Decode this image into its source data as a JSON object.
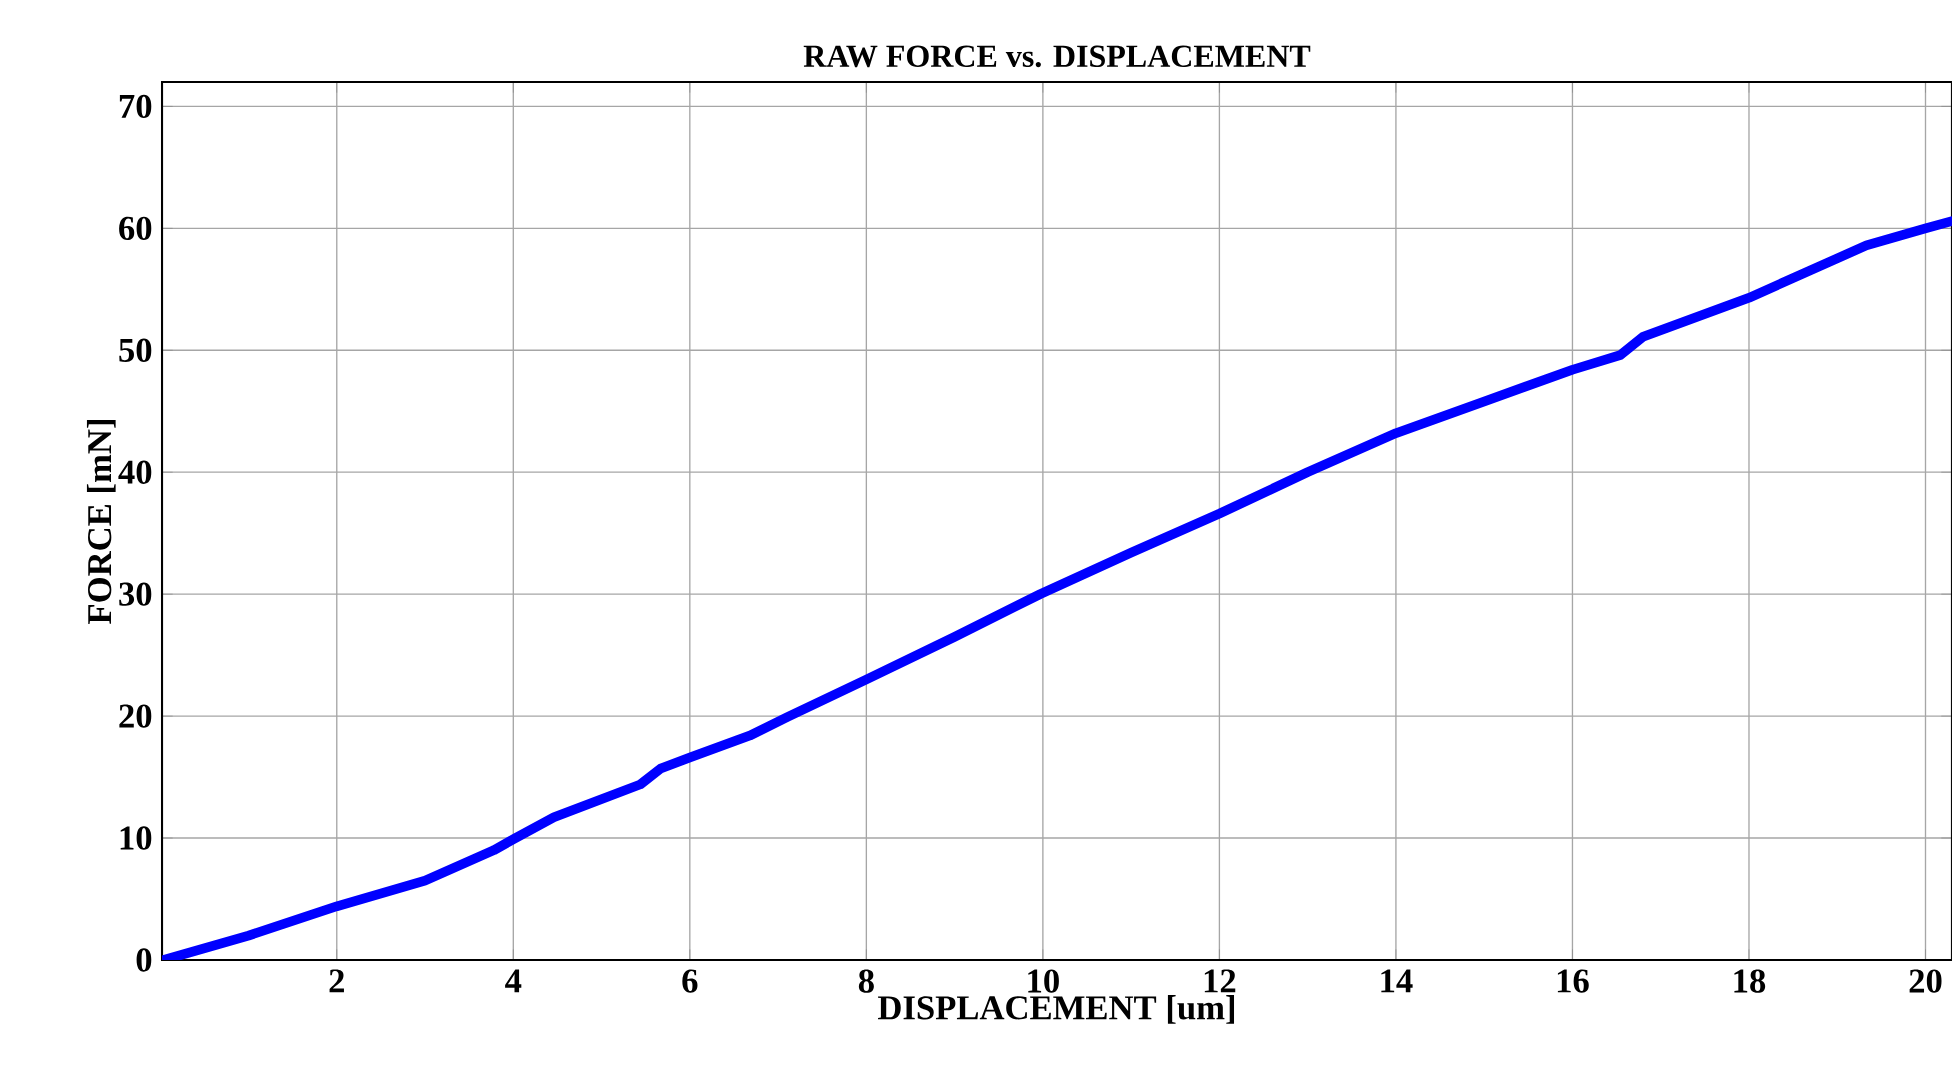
{
  "chart_data": {
    "type": "line",
    "title": "RAW FORCE vs. DISPLACEMENT",
    "xlabel": "DISPLACEMENT [um]",
    "ylabel": "FORCE [mN]",
    "x": [
      0.04,
      1,
      2,
      3,
      3.78,
      4,
      4.46,
      5.44,
      5.67,
      6,
      6.68,
      7.1,
      8,
      9,
      9.97,
      11,
      12,
      13,
      14,
      15,
      16,
      16.54,
      16.8,
      18,
      19.33,
      20,
      20.3
    ],
    "values": [
      0,
      2.0,
      4.4,
      6.5,
      9.0,
      9.9,
      11.7,
      14.4,
      15.7,
      16.6,
      18.4,
      19.9,
      23.0,
      26.5,
      30.0,
      33.4,
      36.6,
      40.0,
      43.2,
      45.8,
      48.4,
      49.6,
      51.1,
      54.3,
      58.6,
      60.0,
      60.6
    ],
    "color": "#0000ff",
    "xlim": [
      0.02,
      20.3
    ],
    "ylim": [
      0,
      72
    ],
    "xticks": [
      2,
      4,
      6,
      8,
      10,
      12,
      14,
      16,
      18,
      20
    ],
    "yticks": [
      0,
      10,
      20,
      30,
      40,
      50,
      60,
      70
    ],
    "grid": true
  }
}
